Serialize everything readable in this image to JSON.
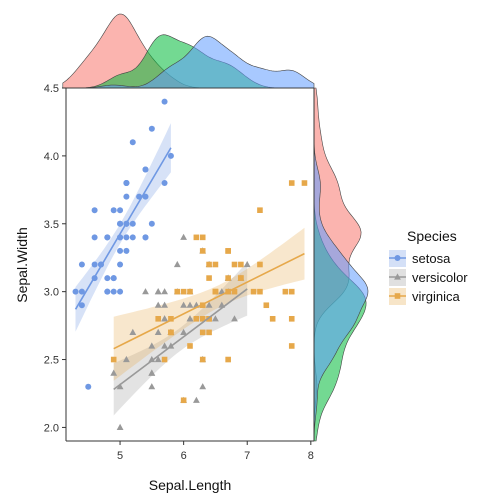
{
  "chart_data": {
    "type": "scatter",
    "xlabel": "Sepal.Length",
    "ylabel": "Sepal.Width",
    "xlim": [
      4.15,
      8.05
    ],
    "ylim": [
      1.9,
      4.5
    ],
    "x_ticks": [
      5,
      6,
      7,
      8
    ],
    "y_ticks": [
      2.0,
      2.5,
      3.0,
      3.5,
      4.0,
      4.5
    ],
    "y_tick_labels": [
      "2.0",
      "2.5",
      "3.0",
      "3.5",
      "4.0",
      "4.5"
    ],
    "grid": false,
    "legend_title": "Species",
    "legend_position": "right",
    "marginal_plots": "density",
    "series": [
      {
        "name": "setosa",
        "color": "#6f98e3",
        "marker": "circle",
        "regression": {
          "x_start": 4.3,
          "y_start": 2.87,
          "x_end": 5.8,
          "y_end": 4.06
        },
        "points": [
          [
            5.1,
            3.5
          ],
          [
            4.9,
            3.0
          ],
          [
            4.7,
            3.2
          ],
          [
            4.6,
            3.1
          ],
          [
            5.0,
            3.6
          ],
          [
            5.4,
            3.9
          ],
          [
            4.6,
            3.4
          ],
          [
            5.0,
            3.4
          ],
          [
            4.4,
            2.9
          ],
          [
            4.9,
            3.1
          ],
          [
            5.4,
            3.7
          ],
          [
            4.8,
            3.4
          ],
          [
            4.8,
            3.0
          ],
          [
            4.3,
            3.0
          ],
          [
            5.8,
            4.0
          ],
          [
            5.7,
            4.4
          ],
          [
            5.4,
            3.9
          ],
          [
            5.1,
            3.5
          ],
          [
            5.7,
            3.8
          ],
          [
            5.1,
            3.8
          ],
          [
            5.4,
            3.4
          ],
          [
            5.1,
            3.7
          ],
          [
            4.6,
            3.6
          ],
          [
            5.1,
            3.3
          ],
          [
            4.8,
            3.4
          ],
          [
            5.0,
            3.0
          ],
          [
            5.0,
            3.4
          ],
          [
            5.2,
            3.5
          ],
          [
            5.2,
            3.4
          ],
          [
            4.7,
            3.2
          ],
          [
            4.8,
            3.1
          ],
          [
            5.4,
            3.4
          ],
          [
            5.2,
            4.1
          ],
          [
            5.5,
            4.2
          ],
          [
            4.9,
            3.1
          ],
          [
            5.0,
            3.2
          ],
          [
            5.5,
            3.5
          ],
          [
            4.9,
            3.6
          ],
          [
            4.4,
            3.0
          ],
          [
            5.1,
            3.4
          ],
          [
            5.0,
            3.5
          ],
          [
            4.5,
            2.3
          ],
          [
            4.4,
            3.2
          ],
          [
            5.0,
            3.5
          ],
          [
            5.1,
            3.8
          ],
          [
            4.8,
            3.0
          ],
          [
            5.1,
            3.8
          ],
          [
            4.6,
            3.2
          ],
          [
            5.3,
            3.7
          ],
          [
            5.0,
            3.3
          ]
        ]
      },
      {
        "name": "versicolor",
        "color": "#999999",
        "marker": "triangle",
        "regression": {
          "x_start": 4.9,
          "y_start": 2.28,
          "x_end": 7.0,
          "y_end": 3.02
        },
        "points": [
          [
            7.0,
            3.2
          ],
          [
            6.4,
            3.2
          ],
          [
            6.9,
            3.1
          ],
          [
            5.5,
            2.3
          ],
          [
            6.5,
            2.8
          ],
          [
            5.7,
            2.8
          ],
          [
            6.3,
            3.3
          ],
          [
            4.9,
            2.4
          ],
          [
            6.6,
            2.9
          ],
          [
            5.2,
            2.7
          ],
          [
            5.0,
            2.0
          ],
          [
            5.9,
            3.0
          ],
          [
            6.0,
            2.2
          ],
          [
            6.1,
            2.9
          ],
          [
            5.6,
            2.9
          ],
          [
            6.7,
            3.1
          ],
          [
            5.6,
            3.0
          ],
          [
            5.8,
            2.7
          ],
          [
            6.2,
            2.2
          ],
          [
            5.6,
            2.5
          ],
          [
            5.9,
            3.2
          ],
          [
            6.1,
            2.8
          ],
          [
            6.3,
            2.5
          ],
          [
            6.1,
            2.8
          ],
          [
            6.4,
            2.9
          ],
          [
            6.6,
            3.0
          ],
          [
            6.8,
            2.8
          ],
          [
            6.7,
            3.0
          ],
          [
            6.0,
            2.9
          ],
          [
            5.7,
            2.6
          ],
          [
            5.5,
            2.4
          ],
          [
            5.5,
            2.4
          ],
          [
            5.8,
            2.7
          ],
          [
            6.0,
            2.7
          ],
          [
            5.4,
            3.0
          ],
          [
            6.0,
            3.4
          ],
          [
            6.7,
            3.1
          ],
          [
            6.3,
            2.3
          ],
          [
            5.6,
            3.0
          ],
          [
            5.5,
            2.5
          ],
          [
            5.5,
            2.6
          ],
          [
            6.1,
            3.0
          ],
          [
            5.8,
            2.6
          ],
          [
            5.0,
            2.3
          ],
          [
            5.6,
            2.7
          ],
          [
            5.7,
            3.0
          ],
          [
            5.7,
            2.9
          ],
          [
            6.2,
            2.9
          ],
          [
            5.1,
            2.5
          ],
          [
            5.7,
            2.8
          ]
        ]
      },
      {
        "name": "virginica",
        "color": "#e6a84a",
        "marker": "square",
        "regression": {
          "x_start": 4.9,
          "y_start": 2.58,
          "x_end": 7.9,
          "y_end": 3.28
        },
        "points": [
          [
            6.3,
            3.3
          ],
          [
            5.8,
            2.7
          ],
          [
            7.1,
            3.0
          ],
          [
            6.3,
            2.9
          ],
          [
            6.5,
            3.0
          ],
          [
            7.6,
            3.0
          ],
          [
            4.9,
            2.5
          ],
          [
            7.3,
            2.9
          ],
          [
            6.7,
            2.5
          ],
          [
            7.2,
            3.6
          ],
          [
            6.5,
            3.2
          ],
          [
            6.4,
            2.7
          ],
          [
            6.8,
            3.0
          ],
          [
            5.7,
            2.5
          ],
          [
            5.8,
            2.8
          ],
          [
            6.4,
            3.2
          ],
          [
            6.5,
            3.0
          ],
          [
            7.7,
            3.8
          ],
          [
            7.7,
            2.6
          ],
          [
            6.0,
            2.2
          ],
          [
            6.9,
            3.2
          ],
          [
            5.6,
            2.8
          ],
          [
            7.7,
            2.8
          ],
          [
            6.3,
            2.7
          ],
          [
            6.7,
            3.3
          ],
          [
            7.2,
            3.2
          ],
          [
            6.2,
            2.8
          ],
          [
            6.1,
            3.0
          ],
          [
            6.4,
            2.8
          ],
          [
            7.2,
            3.0
          ],
          [
            7.4,
            2.8
          ],
          [
            7.9,
            3.8
          ],
          [
            6.4,
            2.8
          ],
          [
            6.3,
            2.8
          ],
          [
            6.1,
            2.6
          ],
          [
            7.7,
            3.0
          ],
          [
            6.3,
            3.4
          ],
          [
            6.4,
            3.1
          ],
          [
            6.0,
            3.0
          ],
          [
            6.9,
            3.1
          ],
          [
            6.7,
            3.1
          ],
          [
            6.9,
            3.1
          ],
          [
            5.8,
            2.7
          ],
          [
            6.8,
            3.2
          ],
          [
            6.7,
            3.3
          ],
          [
            6.7,
            3.0
          ],
          [
            6.3,
            2.5
          ],
          [
            6.5,
            3.0
          ],
          [
            6.2,
            3.4
          ],
          [
            5.9,
            3.0
          ]
        ]
      }
    ]
  }
}
